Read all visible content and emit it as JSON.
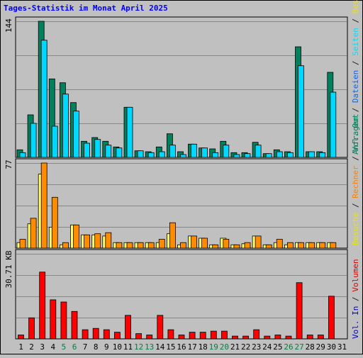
{
  "chart_data": [
    {
      "type": "bar",
      "panel": "top",
      "title": "Tages-Statistik im Monat April 2025",
      "ymax_label": "144",
      "legend_right": [
        {
          "text": "Anfragen",
          "color": "#00805c"
        },
        {
          "text": " / ",
          "color": "#222222"
        },
        {
          "text": "Dateien",
          "color": "#0066ff"
        },
        {
          "text": " / ",
          "color": "#222222"
        },
        {
          "text": "Seiten",
          "color": "#00e0ff"
        },
        {
          "text": " / ",
          "color": "#222222"
        },
        {
          "text": "Besuche",
          "color": "#e6e600"
        }
      ],
      "categories": [
        "1",
        "2",
        "3",
        "4",
        "5",
        "6",
        "7",
        "8",
        "9",
        "10",
        "11",
        "12",
        "13",
        "14",
        "15",
        "16",
        "17",
        "18",
        "19",
        "20",
        "21",
        "22",
        "23",
        "24",
        "25",
        "26",
        "27",
        "28",
        "29",
        "30",
        "31"
      ],
      "ylim": [
        0,
        144
      ],
      "series": [
        {
          "name": "Anfragen",
          "color": "#00805c",
          "values": [
            8,
            45,
            144,
            83,
            79,
            58,
            17,
            21,
            17,
            11,
            53,
            7,
            6,
            11,
            25,
            6,
            14,
            10,
            9,
            17,
            5,
            5,
            16,
            4,
            8,
            6,
            117,
            6,
            6,
            90,
            0
          ]
        },
        {
          "name": "Seiten",
          "color": "#00d8ff",
          "values": [
            5,
            36,
            124,
            33,
            67,
            49,
            15,
            19,
            13,
            10,
            53,
            7,
            5,
            6,
            13,
            3,
            14,
            10,
            5,
            13,
            3,
            4,
            13,
            4,
            6,
            5,
            97,
            6,
            5,
            69,
            0
          ]
        }
      ]
    },
    {
      "type": "bar",
      "panel": "middle",
      "ymax_label": "77",
      "legend_right": [
        {
          "text": "Besuche",
          "color": "#e6e600"
        },
        {
          "text": " / ",
          "color": "#222222"
        },
        {
          "text": "Rechner",
          "color": "#ff8000"
        },
        {
          "text": " / ",
          "color": "#222222"
        },
        {
          "text": "Vol. Out",
          "color": "#00805c"
        }
      ],
      "categories": [
        "1",
        "2",
        "3",
        "4",
        "5",
        "6",
        "7",
        "8",
        "9",
        "10",
        "11",
        "12",
        "13",
        "14",
        "15",
        "16",
        "17",
        "18",
        "19",
        "20",
        "21",
        "22",
        "23",
        "24",
        "25",
        "26",
        "27",
        "28",
        "29",
        "30",
        "31"
      ],
      "ylim": [
        0,
        77
      ],
      "series": [
        {
          "name": "Besuche",
          "color": "#ffff66",
          "values": [
            5,
            22,
            67,
            19,
            3,
            21,
            12,
            12,
            11,
            5,
            5,
            5,
            5,
            5,
            13,
            3,
            11,
            9,
            3,
            9,
            3,
            4,
            11,
            3,
            5,
            3,
            5,
            5,
            5,
            5,
            0
          ]
        },
        {
          "name": "Rechner",
          "color": "#ff8c00",
          "values": [
            8,
            27,
            77,
            46,
            5,
            21,
            12,
            13,
            14,
            5,
            5,
            5,
            5,
            8,
            23,
            5,
            11,
            9,
            3,
            8,
            3,
            5,
            11,
            3,
            8,
            5,
            5,
            5,
            5,
            5,
            0
          ]
        }
      ]
    },
    {
      "type": "bar",
      "panel": "bottom",
      "ymax_label": "30.71 KB",
      "legend_right": [
        {
          "text": "Vol. In",
          "color": "#0000cc"
        },
        {
          "text": " / ",
          "color": "#222222"
        },
        {
          "text": "Volumen",
          "color": "#e00000"
        }
      ],
      "categories": [
        "1",
        "2",
        "3",
        "4",
        "5",
        "6",
        "7",
        "8",
        "9",
        "10",
        "11",
        "12",
        "13",
        "14",
        "15",
        "16",
        "17",
        "18",
        "19",
        "20",
        "21",
        "22",
        "23",
        "24",
        "25",
        "26",
        "27",
        "28",
        "29",
        "30",
        "31"
      ],
      "ylim": [
        0,
        30.71
      ],
      "series": [
        {
          "name": "Volumen",
          "color": "#ff0000",
          "values": [
            1.4,
            7.6,
            24.1,
            14.1,
            13.3,
            9.9,
            3.3,
            3.8,
            3.3,
            2.4,
            8.5,
            1.9,
            1.4,
            8.5,
            3.3,
            1.4,
            2.4,
            2.4,
            2.8,
            2.8,
            1.0,
            1.0,
            3.3,
            1.0,
            1.4,
            1.0,
            20.3,
            1.4,
            1.4,
            15.4,
            0
          ]
        }
      ]
    }
  ],
  "colors": {
    "background": "#c0c0c0",
    "plot_background": "#c0c0c0",
    "grid": "#888888",
    "frame": "#000000",
    "weekend_label": "#008040",
    "weekday_label": "#000000",
    "title": "#0000ff"
  },
  "weekend_days": [
    "5",
    "6",
    "12",
    "13",
    "19",
    "20",
    "26",
    "27"
  ]
}
